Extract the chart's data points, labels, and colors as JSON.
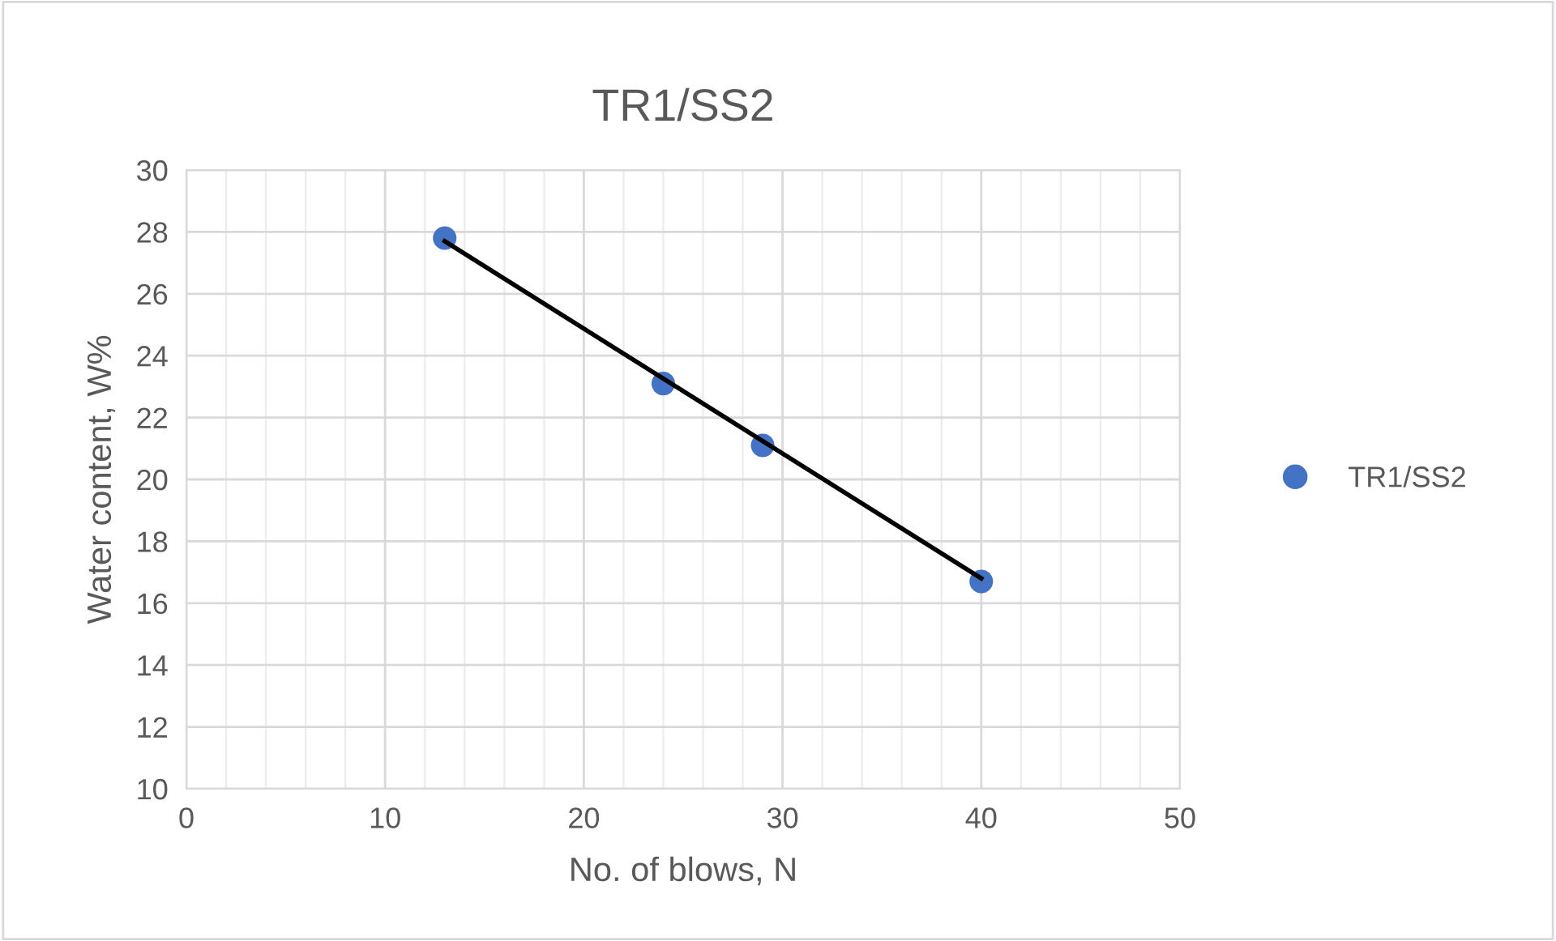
{
  "chart_data": {
    "type": "scatter",
    "title": "TR1/SS2",
    "xlabel": "No. of blows, N",
    "ylabel": "Water content, W%",
    "series": [
      {
        "name": "TR1/SS2",
        "color": "#4472c4",
        "x": [
          13,
          24,
          29,
          40
        ],
        "values": [
          27.8,
          23.1,
          21.1,
          16.7
        ],
        "marker": "circle"
      },
      {
        "type": "line",
        "color": "#000000",
        "x": [
          13,
          40
        ],
        "values": [
          27.7,
          16.8
        ],
        "marker": "none",
        "line_style": "solid"
      }
    ],
    "xlim": [
      0,
      50
    ],
    "xticks": [
      0,
      10,
      20,
      30,
      40,
      50
    ],
    "ylim": [
      10,
      30
    ],
    "yticks": [
      10,
      12,
      14,
      16,
      18,
      20,
      22,
      24,
      26,
      28,
      30
    ],
    "grid": true,
    "legend": "right"
  }
}
